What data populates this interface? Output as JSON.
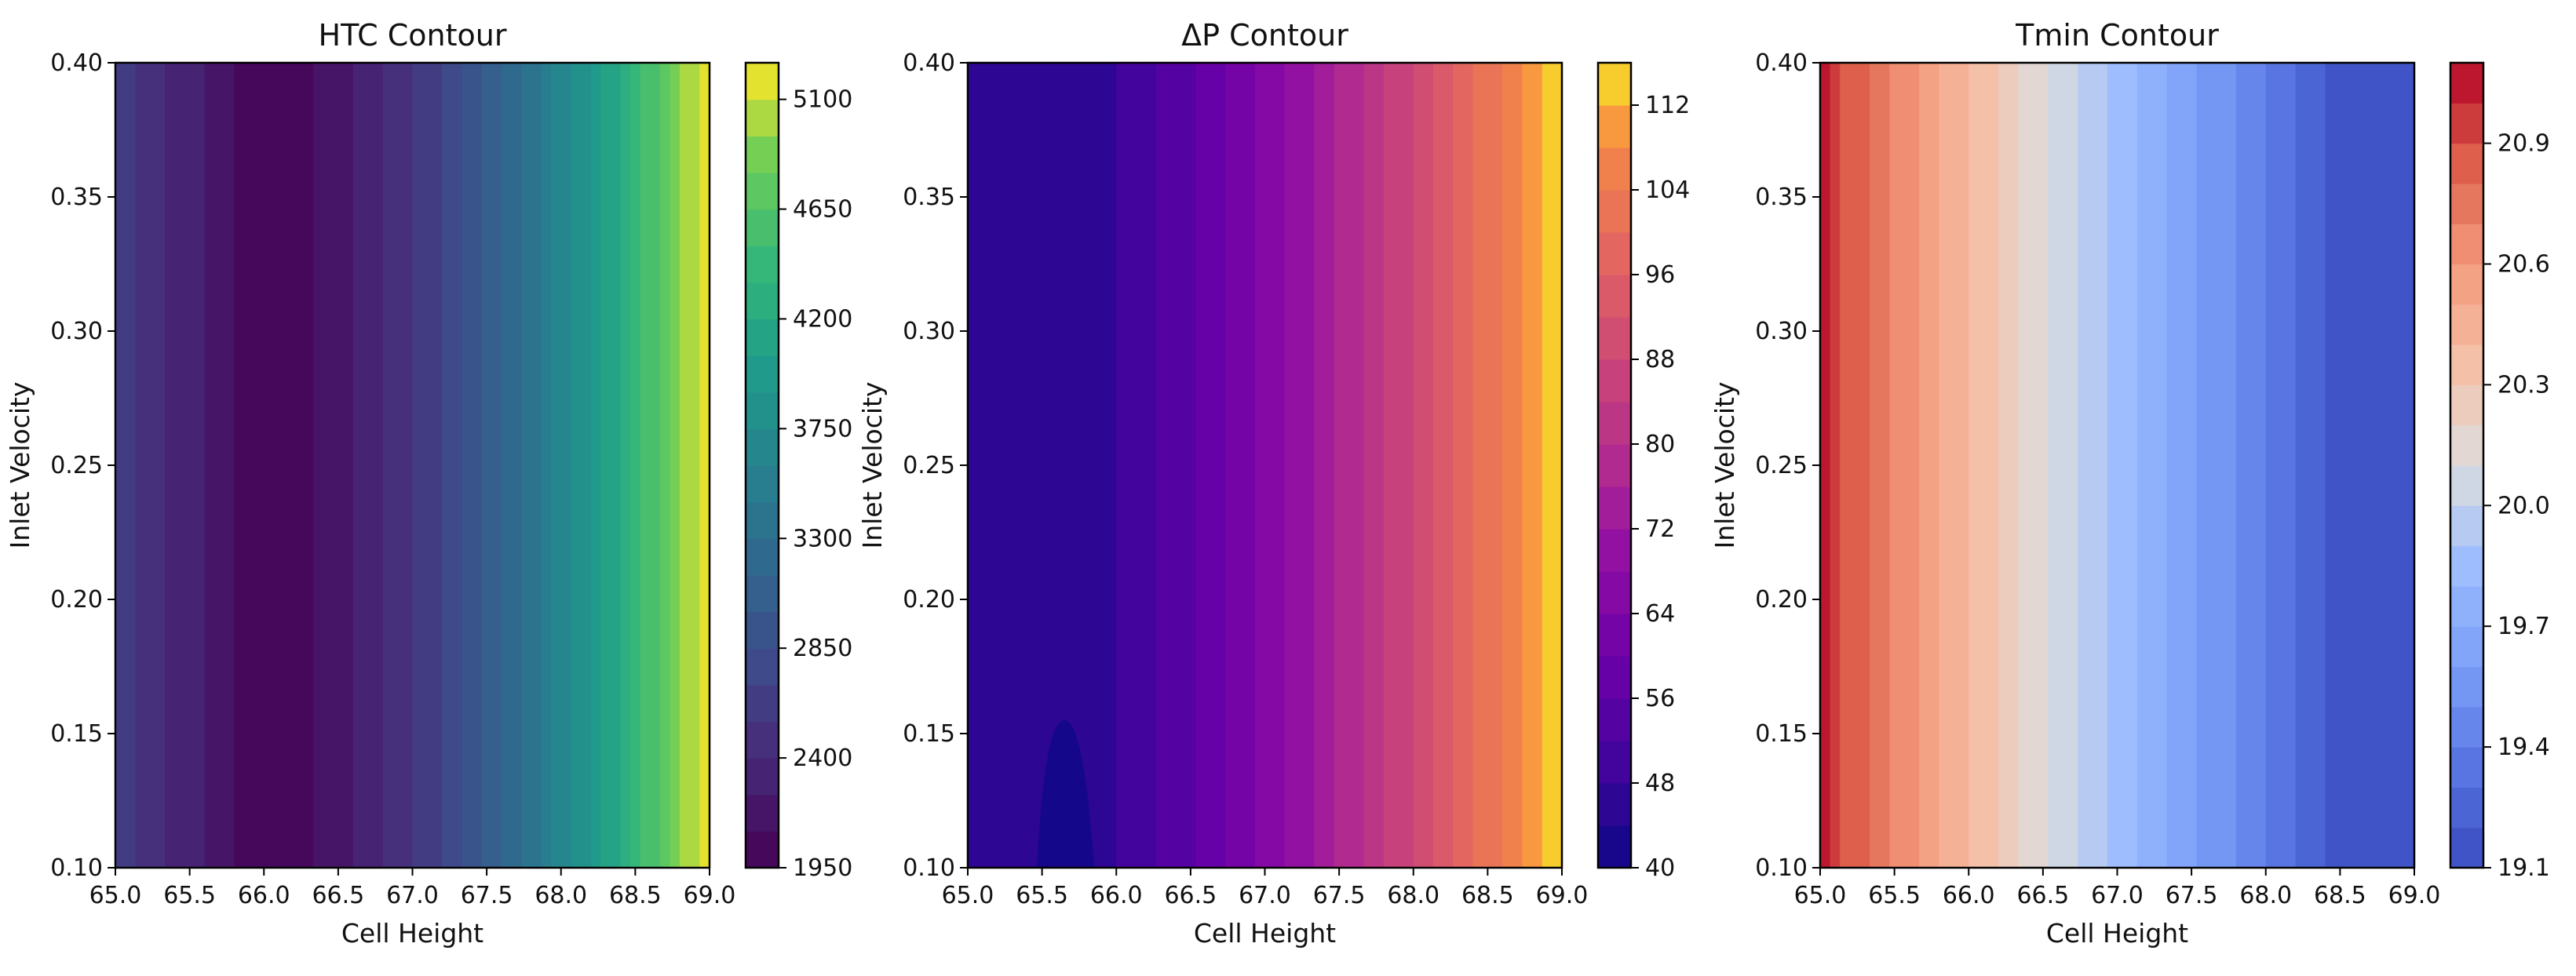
{
  "chart_data": [
    {
      "type": "heatmap",
      "title": "HTC Contour",
      "xlabel": "Cell Height",
      "ylabel": "Inlet Velocity",
      "xlim": [
        65.0,
        69.0
      ],
      "ylim": [
        0.1,
        0.4
      ],
      "x_ticks": [
        "65.0",
        "65.5",
        "66.0",
        "66.5",
        "67.0",
        "67.5",
        "68.0",
        "68.5",
        "69.0"
      ],
      "y_ticks": [
        "0.10",
        "0.15",
        "0.20",
        "0.25",
        "0.30",
        "0.35",
        "0.40"
      ],
      "colormap": "viridis",
      "colorbar": {
        "range": [
          1950,
          5250
        ],
        "ticks": [
          "1950",
          "2400",
          "2850",
          "3300",
          "3750",
          "4200",
          "4650",
          "5100"
        ],
        "levels": 22
      },
      "trend": "minimum near Cell Height 65.8, rising steeply toward 69.0; nearly independent of Inlet Velocity"
    },
    {
      "type": "heatmap",
      "title": "ΔP Contour",
      "xlabel": "Cell Height",
      "ylabel": "Inlet Velocity",
      "xlim": [
        65.0,
        69.0
      ],
      "ylim": [
        0.1,
        0.4
      ],
      "x_ticks": [
        "65.0",
        "65.5",
        "66.0",
        "66.5",
        "67.0",
        "67.5",
        "68.0",
        "68.5",
        "69.0"
      ],
      "y_ticks": [
        "0.10",
        "0.15",
        "0.20",
        "0.25",
        "0.30",
        "0.35",
        "0.40"
      ],
      "colormap": "plasma",
      "colorbar": {
        "range": [
          40,
          116
        ],
        "ticks": [
          "40",
          "48",
          "56",
          "64",
          "72",
          "80",
          "88",
          "96",
          "104",
          "112"
        ],
        "levels": 19
      },
      "trend": "lowest near Cell Height 65.7 at low velocity (below 0.15), increasing toward 69.0"
    },
    {
      "type": "heatmap",
      "title": "Tmin Contour",
      "xlabel": "Cell Height",
      "ylabel": "Inlet Velocity",
      "xlim": [
        65.0,
        69.0
      ],
      "ylim": [
        0.1,
        0.4
      ],
      "x_ticks": [
        "65.0",
        "65.5",
        "66.0",
        "66.5",
        "67.0",
        "67.5",
        "68.0",
        "68.5",
        "69.0"
      ],
      "y_ticks": [
        "0.10",
        "0.15",
        "0.20",
        "0.25",
        "0.30",
        "0.35",
        "0.40"
      ],
      "colormap": "coolwarm",
      "colorbar": {
        "range": [
          19.1,
          21.1
        ],
        "ticks": [
          "19.1",
          "19.4",
          "19.7",
          "20.0",
          "20.3",
          "20.6",
          "20.9"
        ],
        "levels": 20
      },
      "trend": "highest (about 21.0) at Cell Height 65.0, decreasing to about 19.1 near 68.5-69.0"
    }
  ]
}
